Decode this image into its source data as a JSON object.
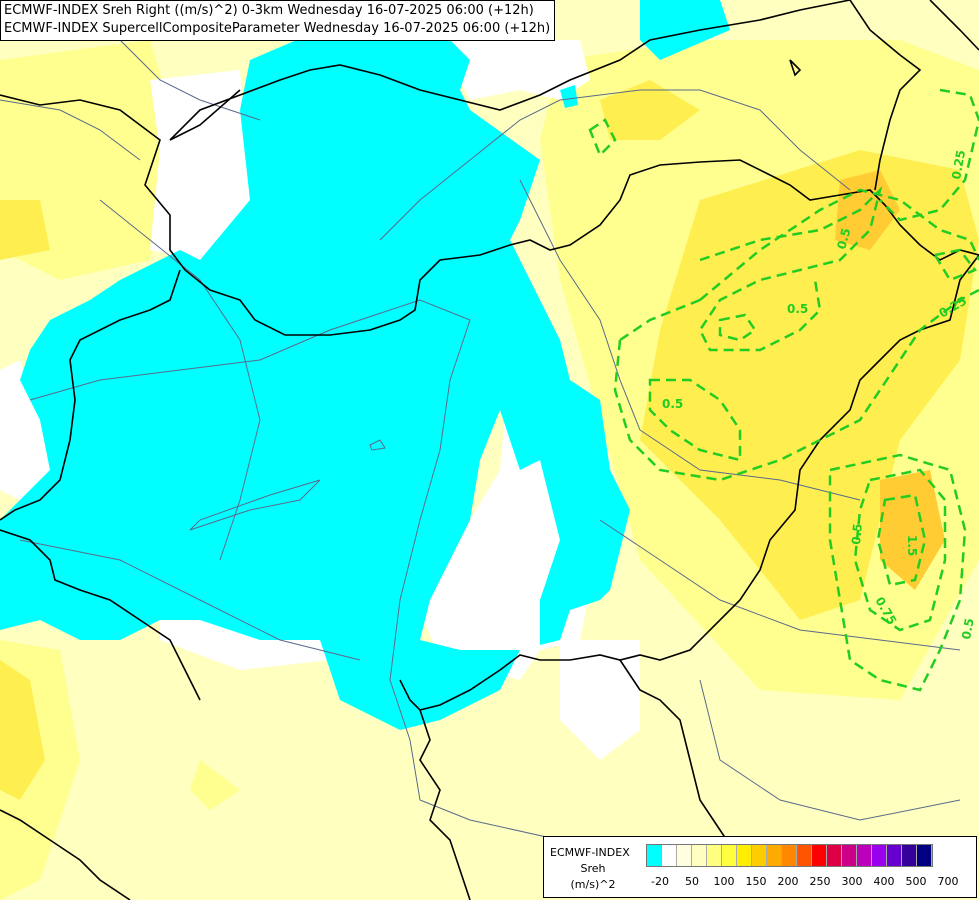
{
  "header": {
    "line1": "ECMWF-INDEX Sreh Right ((m/s)^2) 0-3km Wednesday 16-07-2025 06:00 (+12h)",
    "line2": "ECMWF-INDEX SupercellCompositeParameter Wednesday 16-07-2025 06:00 (+12h)"
  },
  "legend": {
    "source": "ECMWF-INDEX",
    "variable": "Sreh",
    "unit": "(m/s)^2",
    "colors": [
      "#00ffff",
      "#ffffff",
      "#ffffe0",
      "#ffffc0",
      "#ffff80",
      "#ffff40",
      "#ffee00",
      "#ffcc00",
      "#ffaa00",
      "#ff8800",
      "#ff5500",
      "#ff0000",
      "#dd0044",
      "#cc0088",
      "#bb00bb",
      "#9900ee",
      "#6600cc",
      "#330099",
      "#000080"
    ],
    "ticks": [
      "-20",
      "50",
      "100",
      "150",
      "200",
      "250",
      "300",
      "400",
      "500",
      "700"
    ]
  },
  "contour_labels": [
    "0.25",
    "0.5",
    "0.5",
    "0.5",
    "0.25",
    "0.5",
    "1.5",
    "0.75",
    "0.5"
  ],
  "colors": {
    "cyan": "#00ffff",
    "pale_yellow": "#ffffc0",
    "yellow": "#ffff80",
    "deep_yellow": "#ffee40",
    "orange": "#ffc820",
    "contour": "#22cc22",
    "border": "#000000",
    "river": "#5a6a8a"
  }
}
